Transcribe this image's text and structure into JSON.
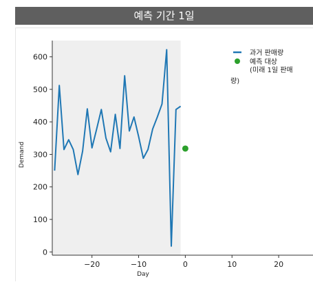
{
  "header": {
    "title": "예측 기간 1일"
  },
  "chart_data": {
    "type": "line",
    "title": "",
    "xlabel": "Day",
    "ylabel": "Demand",
    "xlim": [
      -28.5,
      27.5
    ],
    "ylim": [
      -10,
      650
    ],
    "xticks": [
      -20,
      -10,
      0,
      10,
      20
    ],
    "yticks": [
      0,
      100,
      200,
      300,
      400,
      500,
      600
    ],
    "x_tick_labels": [
      "−20",
      "−10",
      "0",
      "10",
      "20"
    ],
    "y_tick_labels": [
      "0",
      "100",
      "200",
      "300",
      "400",
      "500",
      "600"
    ],
    "shaded_region": {
      "x_from": -28.5,
      "x_to": -1,
      "color": "#efefef"
    },
    "grid": false,
    "legend_position": "top-right",
    "series": [
      {
        "name": "과거 판매량",
        "kind": "line",
        "color": "#1f77b4",
        "x": [
          -28,
          -27,
          -26,
          -25,
          -24,
          -23,
          -22,
          -21,
          -20,
          -19,
          -18,
          -17,
          -16,
          -15,
          -14,
          -13,
          -12,
          -11,
          -10,
          -9,
          -8,
          -7,
          -6,
          -5,
          -4,
          -3,
          -2,
          -1
        ],
        "y": [
          250,
          512,
          315,
          345,
          315,
          238,
          310,
          440,
          320,
          378,
          438,
          350,
          308,
          423,
          318,
          542,
          372,
          415,
          355,
          288,
          315,
          378,
          415,
          455,
          622,
          18,
          438,
          448
        ]
      },
      {
        "name": "예측 대상 (미래 1일 판매량)",
        "legend_lines": [
          "예측 대상",
          "(미래 1일 판매",
          "량)"
        ],
        "kind": "point",
        "color": "#2ca02c",
        "x": [
          0
        ],
        "y": [
          318
        ]
      }
    ]
  }
}
